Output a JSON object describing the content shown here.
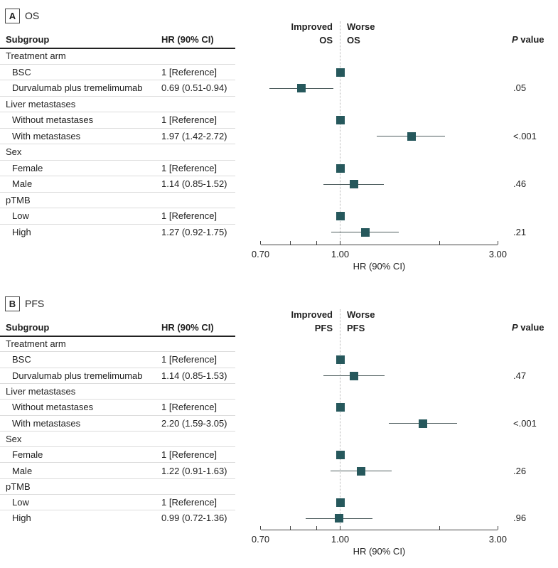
{
  "chart_data": [
    {
      "type": "scatter",
      "subtype": "forest-plot",
      "panel_label": "A",
      "title": "OS",
      "table_columns": [
        "Subgroup",
        "HR (90% CI)"
      ],
      "effect_label_left": [
        "Improved",
        "OS"
      ],
      "effect_label_right": [
        "Worse",
        "OS"
      ],
      "p_column_header_italic": "P",
      "p_column_header_rest": " value",
      "xlabel": "HR (90% CI)",
      "xscale": "log",
      "reference_line": 1.0,
      "x_ticks_major": [
        {
          "value": 0.7,
          "label": "0.70"
        },
        {
          "value": 1.0,
          "label": "1.00"
        },
        {
          "value": 3.0,
          "label": "3.00"
        }
      ],
      "x_ticks_minor": [
        0.8,
        0.9,
        2.0
      ],
      "rows": [
        {
          "kind": "group",
          "subgroup": "Treatment arm"
        },
        {
          "kind": "item",
          "subgroup": "BSC",
          "hr_ci_text": "1 [Reference]",
          "reference": true
        },
        {
          "kind": "item",
          "subgroup": "Durvalumab plus tremelimumab",
          "hr_ci_text": "0.69 (0.51-0.94)",
          "hr": 0.69,
          "ci_low": 0.51,
          "ci_high": 0.94,
          "p_value": ".05"
        },
        {
          "kind": "group",
          "subgroup": "Liver metastases"
        },
        {
          "kind": "item",
          "subgroup": "Without metastases",
          "hr_ci_text": "1 [Reference]",
          "reference": true
        },
        {
          "kind": "item",
          "subgroup": "With metastases",
          "hr_ci_text": "1.97 (1.42-2.72)",
          "hr": 1.97,
          "ci_low": 1.42,
          "ci_high": 2.72,
          "p_value": "<.001"
        },
        {
          "kind": "group",
          "subgroup": "Sex"
        },
        {
          "kind": "item",
          "subgroup": "Female",
          "hr_ci_text": "1 [Reference]",
          "reference": true
        },
        {
          "kind": "item",
          "subgroup": "Male",
          "hr_ci_text": "1.14 (0.85-1.52)",
          "hr": 1.14,
          "ci_low": 0.85,
          "ci_high": 1.52,
          "p_value": ".46"
        },
        {
          "kind": "group",
          "subgroup": "pTMB"
        },
        {
          "kind": "item",
          "subgroup": "Low",
          "hr_ci_text": "1 [Reference]",
          "reference": true
        },
        {
          "kind": "item",
          "subgroup": "High",
          "hr_ci_text": "1.27 (0.92-1.75)",
          "hr": 1.27,
          "ci_low": 0.92,
          "ci_high": 1.75,
          "p_value": ".21"
        }
      ]
    },
    {
      "type": "scatter",
      "subtype": "forest-plot",
      "panel_label": "B",
      "title": "PFS",
      "table_columns": [
        "Subgroup",
        "HR (90% CI)"
      ],
      "effect_label_left": [
        "Improved",
        "PFS"
      ],
      "effect_label_right": [
        "Worse",
        "PFS"
      ],
      "p_column_header_italic": "P",
      "p_column_header_rest": " value",
      "xlabel": "HR (90% CI)",
      "xscale": "log",
      "reference_line": 1.0,
      "x_ticks_major": [
        {
          "value": 0.7,
          "label": "0.70"
        },
        {
          "value": 1.0,
          "label": "1.00"
        },
        {
          "value": 3.0,
          "label": "3.00"
        }
      ],
      "x_ticks_minor": [
        0.8,
        0.9,
        2.0
      ],
      "rows": [
        {
          "kind": "group",
          "subgroup": "Treatment arm"
        },
        {
          "kind": "item",
          "subgroup": "BSC",
          "hr_ci_text": "1 [Reference]",
          "reference": true
        },
        {
          "kind": "item",
          "subgroup": "Durvalumab plus tremelimumab",
          "hr_ci_text": "1.14 (0.85-1.53)",
          "hr": 1.14,
          "ci_low": 0.85,
          "ci_high": 1.53,
          "p_value": ".47"
        },
        {
          "kind": "group",
          "subgroup": "Liver metastases"
        },
        {
          "kind": "item",
          "subgroup": "Without metastases",
          "hr_ci_text": "1 [Reference]",
          "reference": true
        },
        {
          "kind": "item",
          "subgroup": "With metastases",
          "hr_ci_text": "2.20 (1.59-3.05)",
          "hr": 2.2,
          "ci_low": 1.59,
          "ci_high": 3.05,
          "p_value": "<.001"
        },
        {
          "kind": "group",
          "subgroup": "Sex"
        },
        {
          "kind": "item",
          "subgroup": "Female",
          "hr_ci_text": "1 [Reference]",
          "reference": true
        },
        {
          "kind": "item",
          "subgroup": "Male",
          "hr_ci_text": "1.22 (0.91-1.63)",
          "hr": 1.22,
          "ci_low": 0.91,
          "ci_high": 1.63,
          "p_value": ".26"
        },
        {
          "kind": "group",
          "subgroup": "pTMB"
        },
        {
          "kind": "item",
          "subgroup": "Low",
          "hr_ci_text": "1 [Reference]",
          "reference": true
        },
        {
          "kind": "item",
          "subgroup": "High",
          "hr_ci_text": "0.99 (0.72-1.36)",
          "hr": 0.99,
          "ci_low": 0.72,
          "ci_high": 1.36,
          "p_value": ".96"
        }
      ]
    }
  ],
  "colors": {
    "marker": "#26585c",
    "ci_line": "#4e5d5e",
    "axis": "#404040",
    "reference_dotted_line": "#b5b5b5",
    "header_rule": "#222222",
    "row_rule": "#dcdcdc",
    "text": "#212121"
  }
}
